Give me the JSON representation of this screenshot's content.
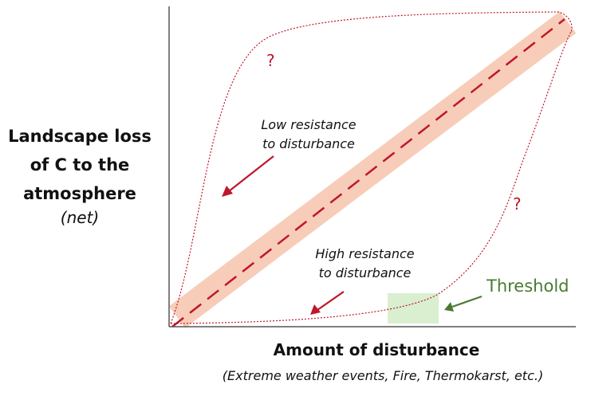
{
  "y_axis": {
    "label_lines": [
      "Landscape loss",
      "of C to the",
      "atmosphere"
    ],
    "sublabel": "(net)"
  },
  "x_axis": {
    "label": "Amount of disturbance",
    "sublabel": "(Extreme weather events, Fire, Thermokarst, etc.)"
  },
  "annotations": {
    "low_resistance": [
      "Low resistance",
      "to disturbance"
    ],
    "high_resistance": [
      "High resistance",
      "to disturbance"
    ],
    "question_mark_upper": "?",
    "question_mark_lower": "?",
    "threshold": "Threshold"
  },
  "colors": {
    "curve": "#c0162b",
    "band": "#f7cdb9",
    "threshold_box": "#d9efcf",
    "threshold_text": "#4a7a32",
    "axis": "#555555"
  }
}
